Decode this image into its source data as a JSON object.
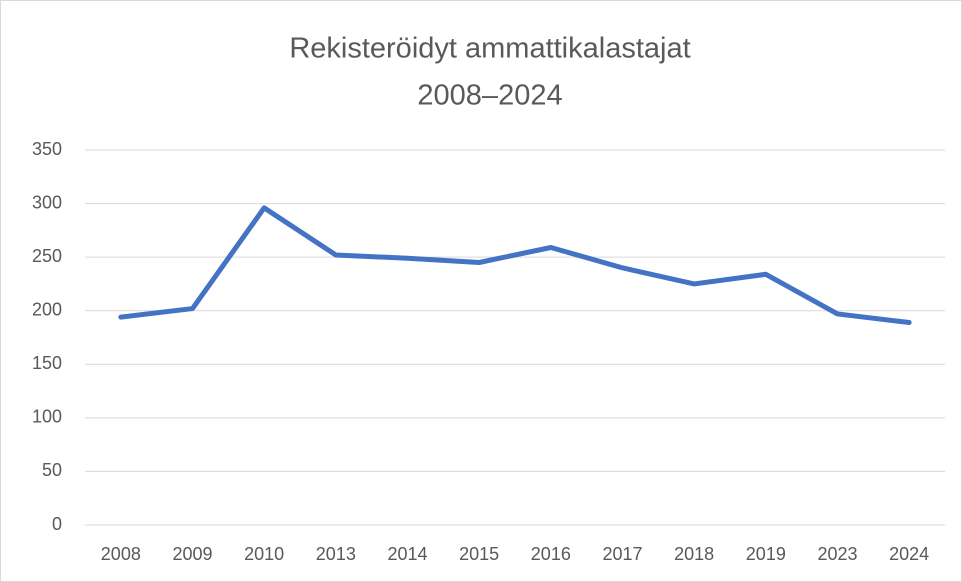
{
  "chart_data": {
    "type": "line",
    "title": [
      "Rekisteröidyt ammattikalastajat",
      "2008–2024"
    ],
    "categories": [
      "2008",
      "2009",
      "2010",
      "2013",
      "2014",
      "2015",
      "2016",
      "2017",
      "2018",
      "2019",
      "2023",
      "2024"
    ],
    "series": [
      {
        "color": "#4472c4",
        "values": [
          194,
          202,
          296,
          252,
          249,
          245,
          259,
          240,
          225,
          234,
          197,
          189
        ]
      }
    ],
    "ylim": [
      0,
      350
    ],
    "yticks": [
      0,
      50,
      100,
      150,
      200,
      250,
      300,
      350
    ],
    "grid": true
  }
}
